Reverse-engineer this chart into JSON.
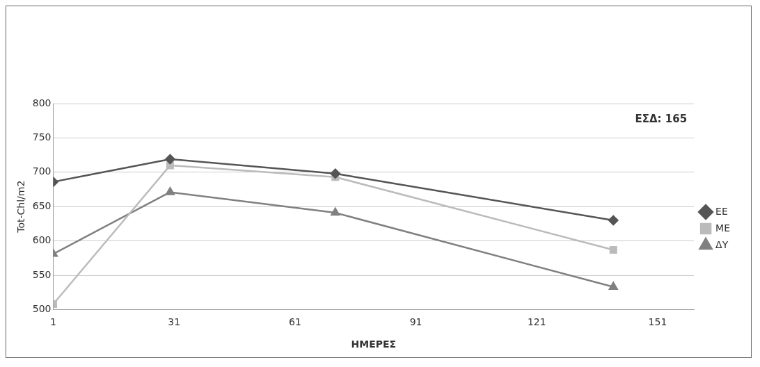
{
  "chart_data": {
    "type": "line",
    "xlabel": "ΗΜΕΡΕΣ",
    "ylabel": "Tot-Chl/m2",
    "x": [
      1,
      30,
      71,
      140
    ],
    "series": [
      {
        "name": "ΕΕ",
        "color": "#555555",
        "marker": "diamond",
        "values": [
          686,
          719,
          698,
          630
        ]
      },
      {
        "name": "ΜΕ",
        "color": "#bbbbbb",
        "marker": "square",
        "values": [
          508,
          710,
          693,
          587
        ]
      },
      {
        "name": "ΔΥ",
        "color": "#808080",
        "marker": "triangle",
        "values": [
          581,
          671,
          641,
          533
        ]
      }
    ],
    "xlim": [
      1,
      160
    ],
    "xticks": [
      1,
      31,
      61,
      91,
      121,
      151
    ],
    "ylim": [
      500,
      800
    ],
    "yticks": [
      500,
      550,
      600,
      650,
      700,
      750,
      800
    ],
    "grid": "y",
    "legend": "right",
    "annotations": [
      "ΕΣΔ: 165"
    ]
  }
}
